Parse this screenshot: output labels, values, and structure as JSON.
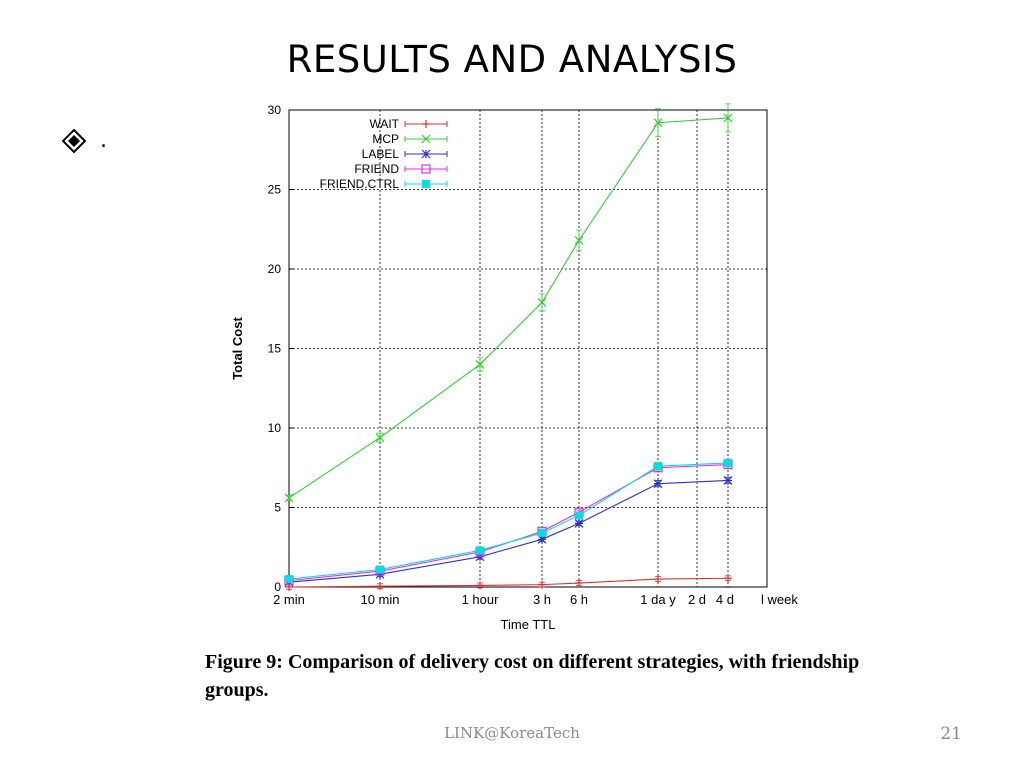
{
  "slide": {
    "title": "RESULTS AND ANALYSIS",
    "bullet_text": ".",
    "caption": "Figure 9:  Comparison of delivery cost on different strategies, with friendship groups.",
    "footer": "LINK@KoreaTech",
    "page_number": "21"
  },
  "chart_data": {
    "type": "line",
    "title": "",
    "xlabel": "Time TTL",
    "ylabel": "Total Cost",
    "ylim": [
      0,
      30
    ],
    "yticks": [
      0,
      5,
      10,
      15,
      20,
      25,
      30
    ],
    "x_ticks": [
      "2 min",
      "10 min",
      "1 hour",
      "3 h",
      "6 h",
      "1 da y",
      "2 d",
      "4 d",
      "l week"
    ],
    "x": [
      "2 min",
      "10 min",
      "1 hour",
      "3 h",
      "6 h",
      "1 da y",
      "4 d"
    ],
    "grid": true,
    "legend_position": "top-left",
    "series": [
      {
        "name": "WAIT",
        "color": "#e03030",
        "marker": "plus",
        "values": [
          0.0,
          0.05,
          0.1,
          0.15,
          0.25,
          0.5,
          0.55
        ]
      },
      {
        "name": "MCP",
        "color": "#30d030",
        "marker": "cross",
        "values": [
          5.6,
          9.4,
          14.0,
          17.9,
          21.8,
          29.2,
          29.5
        ]
      },
      {
        "name": "LABEL",
        "color": "#3030d0",
        "marker": "asterisk",
        "values": [
          0.3,
          0.8,
          1.9,
          3.0,
          4.0,
          6.5,
          6.7
        ]
      },
      {
        "name": "FRIEND",
        "color": "#e030e0",
        "marker": "open-square",
        "values": [
          0.4,
          1.0,
          2.2,
          3.5,
          4.7,
          7.5,
          7.7
        ]
      },
      {
        "name": "FRIEND.CTRL",
        "color": "#00e0e0",
        "marker": "filled-square",
        "values": [
          0.5,
          1.1,
          2.3,
          3.4,
          4.5,
          7.6,
          7.8
        ]
      }
    ]
  }
}
